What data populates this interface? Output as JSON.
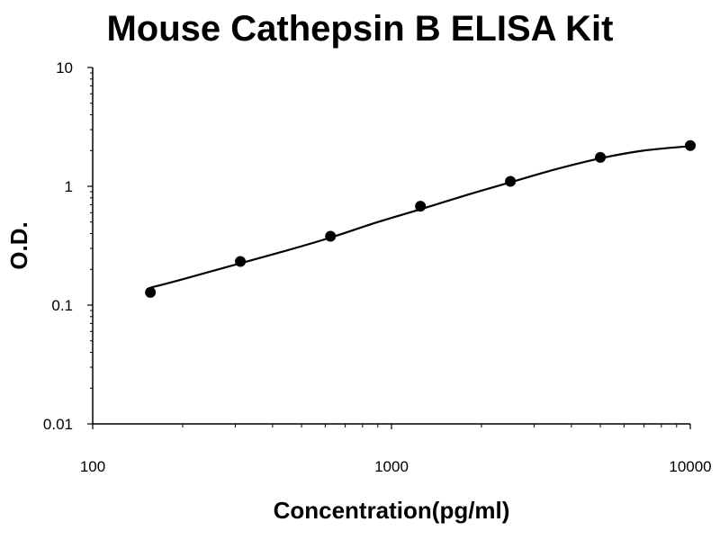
{
  "chart_data": {
    "type": "scatter",
    "title": "Mouse Cathepsin B ELISA Kit",
    "xlabel": "Concentration(pg/ml)",
    "ylabel": "O.D.",
    "x_scale": "log",
    "y_scale": "log",
    "xlim": [
      100,
      10000
    ],
    "ylim": [
      0.01,
      10
    ],
    "x_ticks": [
      "100",
      "1000",
      "10000"
    ],
    "y_ticks": [
      "0.01",
      "0.1",
      "1",
      "10"
    ],
    "grid": false,
    "legend": "none",
    "series": [
      {
        "x": [
          156,
          312,
          625,
          1250,
          2500,
          5000,
          10000
        ],
        "y": [
          0.128,
          0.233,
          0.38,
          0.68,
          1.1,
          1.75,
          2.2
        ]
      }
    ],
    "fit_curve": {
      "x": [
        156,
        200,
        312,
        450,
        625,
        900,
        1250,
        1800,
        2500,
        3500,
        5000,
        7000,
        10000
      ],
      "y": [
        0.14,
        0.165,
        0.225,
        0.29,
        0.37,
        0.5,
        0.64,
        0.85,
        1.08,
        1.38,
        1.72,
        2.0,
        2.18
      ]
    },
    "colors": {
      "marker": "#000000",
      "line": "#000000",
      "axis": "#000000"
    }
  }
}
